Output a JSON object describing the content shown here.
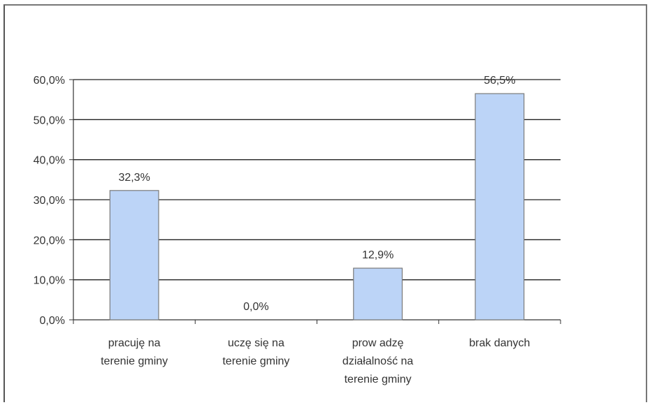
{
  "chart_data": {
    "type": "bar",
    "title": "",
    "xlabel": "",
    "ylabel": "",
    "categories": [
      [
        "pracuję na",
        "terenie gminy"
      ],
      [
        "uczę się na",
        "terenie gminy"
      ],
      [
        "prow adzę",
        "działalność na",
        "terenie gminy"
      ],
      [
        "brak danych"
      ]
    ],
    "values": [
      32.3,
      0.0,
      12.9,
      56.5
    ],
    "data_labels": [
      "32,3%",
      "0,0%",
      "12,9%",
      "56,5%"
    ],
    "ylim": [
      0,
      60
    ],
    "yticks": [
      0,
      10,
      20,
      30,
      40,
      50,
      60
    ],
    "ytick_labels": [
      "0,0%",
      "10,0%",
      "20,0%",
      "30,0%",
      "40,0%",
      "50,0%",
      "60,0%"
    ],
    "grid": true,
    "legend": "none",
    "colors": {
      "bar_fill": "#bcd4f7",
      "bar_stroke": "#7a7a7a",
      "grid": "#222222",
      "axis": "#333333"
    }
  }
}
